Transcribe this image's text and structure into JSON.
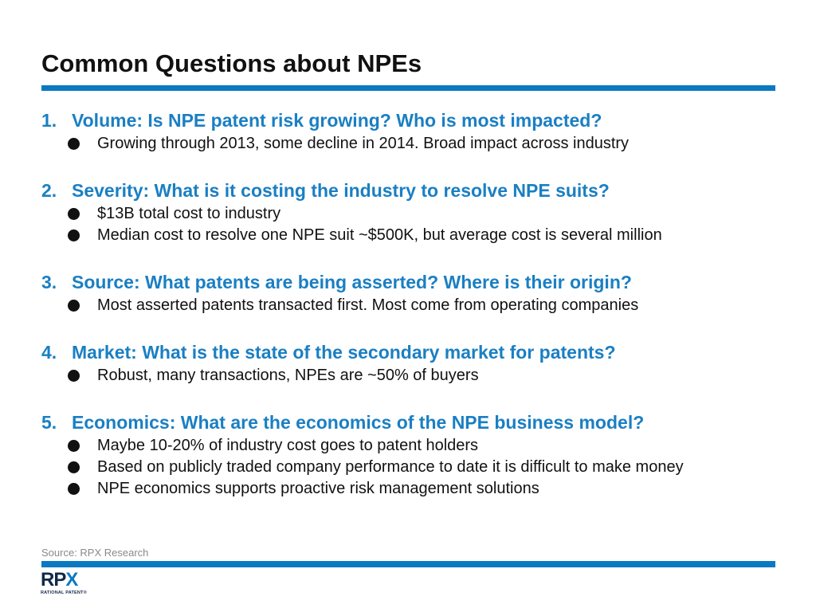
{
  "slide": {
    "title": "Common Questions about NPEs"
  },
  "questions": [
    {
      "number": "1.",
      "heading": "Volume: Is NPE patent risk growing? Who is most impacted?",
      "bullets": [
        "Growing through 2013, some decline in 2014.  Broad impact across industry"
      ]
    },
    {
      "number": "2.",
      "heading": "Severity: What is it costing the industry to resolve NPE suits?",
      "bullets": [
        "$13B total cost to industry",
        "Median cost to resolve one NPE suit ~$500K, but average cost is several million"
      ]
    },
    {
      "number": "3.",
      "heading": "Source: What patents are being asserted? Where is their origin?",
      "bullets": [
        "Most asserted patents transacted first.  Most come from operating companies"
      ]
    },
    {
      "number": "4.",
      "heading": "Market: What is the state of the secondary market for patents?",
      "bullets": [
        "Robust, many transactions, NPEs are ~50% of buyers"
      ]
    },
    {
      "number": "5.",
      "heading": "Economics: What are the economics of the NPE business model?",
      "bullets": [
        "Maybe 10-20% of industry cost goes to patent holders",
        "Based on publicly traded company performance to date it is difficult to make money",
        "NPE economics supports proactive risk management solutions"
      ]
    }
  ],
  "footer": {
    "source": "Source: RPX Research",
    "logo_r": "R",
    "logo_p": "P",
    "logo_x": "X",
    "logo_tagline": "RATIONAL PATENT®"
  },
  "colors": {
    "accent_blue": "#0a79c2",
    "heading_blue": "#1a7fc3",
    "logo_navy": "#11294a"
  }
}
